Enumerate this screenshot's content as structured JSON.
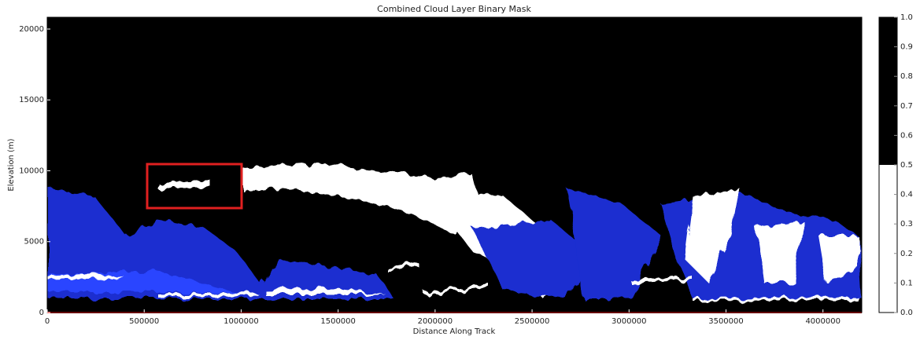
{
  "chart_data": {
    "type": "heatmap",
    "title": "Combined Cloud Layer Binary Mask",
    "x_label": "Distance Along Track",
    "y_label": "Elevation (m)",
    "xlim": [
      0,
      4200000
    ],
    "ylim": [
      0,
      20830
    ],
    "xticks": [
      0,
      500000,
      1000000,
      1500000,
      2000000,
      2500000,
      3000000,
      3500000,
      4000000
    ],
    "yticks": [
      0,
      5000,
      10000,
      15000,
      20000
    ],
    "colorbar": {
      "lim": [
        0,
        1
      ],
      "threshold": 0.5,
      "low_color": "#ffffff",
      "high_color": "#000000",
      "ticks": [
        {
          "value": 0,
          "label": "0.0"
        },
        {
          "value": 0.1,
          "label": "0.1"
        },
        {
          "value": 0.2,
          "label": "0.2"
        },
        {
          "value": 0.3,
          "label": "0.3"
        },
        {
          "value": 0.4,
          "label": "0.4"
        },
        {
          "value": 0.5,
          "label": "0.5"
        },
        {
          "value": 0.6,
          "label": "0.6"
        },
        {
          "value": 0.7,
          "label": "0.7"
        },
        {
          "value": 0.8,
          "label": "0.8"
        },
        {
          "value": 0.9,
          "label": "0.9"
        },
        {
          "value": 1,
          "label": "1.0"
        }
      ]
    }
  }
}
